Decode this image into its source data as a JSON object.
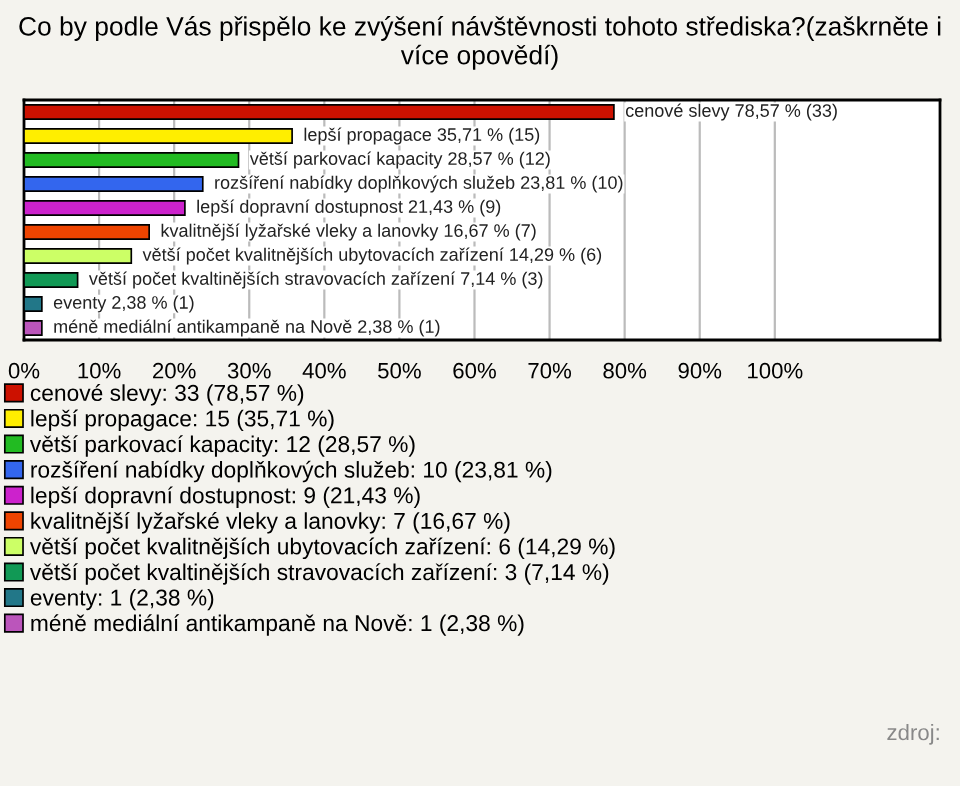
{
  "chart_data": {
    "type": "bar",
    "orientation": "horizontal",
    "title": "Co by podle Vás přispělo ke zvýšení návštěvnosti tohoto střediska?(zaškrněte i více opovědí)",
    "categories": [
      null,
      null,
      null,
      null,
      null,
      null,
      null,
      null,
      null,
      null
    ],
    "xlim": [
      0,
      122
    ],
    "xticks": [
      {
        "value": 0,
        "label": "0%"
      },
      {
        "value": 10,
        "label": "10%"
      },
      {
        "value": 20,
        "label": "20%"
      },
      {
        "value": 30,
        "label": "30%"
      },
      {
        "value": 40,
        "label": "40%"
      },
      {
        "value": 50,
        "label": "50%"
      },
      {
        "value": 60,
        "label": "60%"
      },
      {
        "value": 70,
        "label": "70%"
      },
      {
        "value": 80,
        "label": "80%"
      },
      {
        "value": 90,
        "label": "90%"
      },
      {
        "value": 100,
        "label": "100%"
      }
    ],
    "grid": "x",
    "legend": "bottom",
    "series": [
      {
        "name": "cenové slevy: 33 (78,57 %)",
        "color": "#cc1100",
        "values": [
          78.57,
          null,
          null,
          null,
          null,
          null,
          null,
          null,
          null,
          null
        ],
        "value_labels": [
          "cenové slevy 78,57 % (33)",
          null,
          null,
          null,
          null,
          null,
          null,
          null,
          null,
          null
        ]
      },
      {
        "name": "lepší propagace: 15 (35,71 %)",
        "color": "#ffee00",
        "values": [
          null,
          35.71,
          null,
          null,
          null,
          null,
          null,
          null,
          null,
          null
        ],
        "value_labels": [
          null,
          "lepší propagace 35,71 % (15)",
          null,
          null,
          null,
          null,
          null,
          null,
          null,
          null
        ]
      },
      {
        "name": "větší parkovací kapacity: 12 (28,57 %)",
        "color": "#22bb22",
        "values": [
          null,
          null,
          28.57,
          null,
          null,
          null,
          null,
          null,
          null,
          null
        ],
        "value_labels": [
          null,
          null,
          "větší parkovací kapacity 28,57 % (12)",
          null,
          null,
          null,
          null,
          null,
          null,
          null
        ]
      },
      {
        "name": "rozšíření nabídky doplňkových služeb: 10 (23,81 %)",
        "color": "#3366ee",
        "values": [
          null,
          null,
          null,
          23.81,
          null,
          null,
          null,
          null,
          null,
          null
        ],
        "value_labels": [
          null,
          null,
          null,
          "rozšíření nabídky doplňkových služeb 23,81 % (10)",
          null,
          null,
          null,
          null,
          null,
          null
        ]
      },
      {
        "name": "lepší dopravní dostupnost: 9 (21,43 %)",
        "color": "#cc22cc",
        "values": [
          null,
          null,
          null,
          null,
          21.43,
          null,
          null,
          null,
          null,
          null
        ],
        "value_labels": [
          null,
          null,
          null,
          null,
          "lepší dopravní dostupnost 21,43 % (9)",
          null,
          null,
          null,
          null,
          null
        ]
      },
      {
        "name": "kvalitnější lyžařské vleky a lanovky: 7 (16,67 %)",
        "color": "#ee4400",
        "values": [
          null,
          null,
          null,
          null,
          null,
          16.67,
          null,
          null,
          null,
          null
        ],
        "value_labels": [
          null,
          null,
          null,
          null,
          null,
          "kvalitnější lyžařské vleky a lanovky 16,67 % (7)",
          null,
          null,
          null,
          null
        ]
      },
      {
        "name": "větší počet kvalitnějších ubytovacích zařízení: 6 (14,29 %)",
        "color": "#ccff66",
        "values": [
          null,
          null,
          null,
          null,
          null,
          null,
          14.29,
          null,
          null,
          null
        ],
        "value_labels": [
          null,
          null,
          null,
          null,
          null,
          null,
          "větší počet kvalitnějších ubytovacích zařízení 14,29 % (6)",
          null,
          null,
          null
        ]
      },
      {
        "name": "větší počet kvaltinějších stravovacích zařízení: 3 (7,14 %)",
        "color": "#119955",
        "values": [
          null,
          null,
          null,
          null,
          null,
          null,
          null,
          7.14,
          null,
          null
        ],
        "value_labels": [
          null,
          null,
          null,
          null,
          null,
          null,
          null,
          "větší počet kvaltinějších stravovacích zařízení 7,14 % (3)",
          null,
          null
        ]
      },
      {
        "name": "eventy: 1 (2,38 %)",
        "color": "#227788",
        "values": [
          null,
          null,
          null,
          null,
          null,
          null,
          null,
          null,
          2.38,
          null
        ],
        "value_labels": [
          null,
          null,
          null,
          null,
          null,
          null,
          null,
          null,
          "eventy 2,38 % (1)",
          null
        ]
      },
      {
        "name": "méně mediální antikampaně na Nově: 1 (2,38 %)",
        "color": "#bb55bb",
        "values": [
          null,
          null,
          null,
          null,
          null,
          null,
          null,
          null,
          null,
          2.38
        ],
        "value_labels": [
          null,
          null,
          null,
          null,
          null,
          null,
          null,
          null,
          null,
          "méně mediální antikampaně na Nově 2,38 % (1)"
        ]
      }
    ],
    "annotations": [
      "zdroj:"
    ]
  }
}
